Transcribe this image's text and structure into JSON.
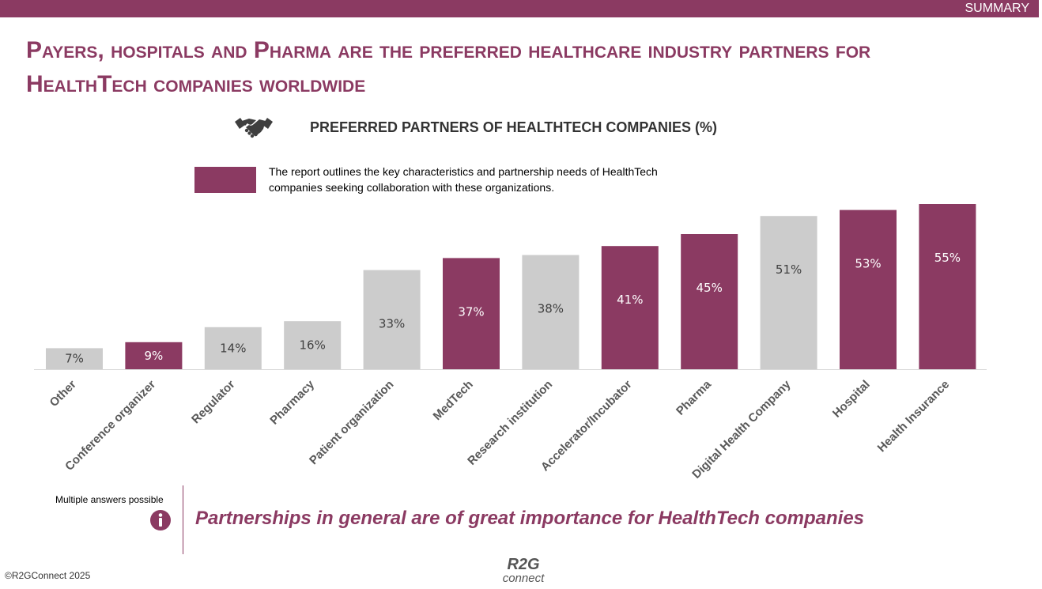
{
  "header": {
    "section_label": "SUMMARY"
  },
  "title": "Payers, hospitals and Pharma are the preferred healthcare industry partners for HealthTech companies worldwide",
  "colors": {
    "accent": "#8b3a62",
    "neutral": "#cccccc",
    "axis": "#d9d9d9"
  },
  "chart_data": {
    "type": "bar",
    "title": "PREFERRED PARTNERS OF HEALTHTECH COMPANIES (%)",
    "title_icon": "handshake-icon",
    "categories": [
      "Other",
      "Conference organizer",
      "Regulator",
      "Pharmacy",
      "Patient organization",
      "MedTech",
      "Research institution",
      "Accelerator/Incubator",
      "Pharma",
      "Digital Health Company",
      "Hospital",
      "Health Insurance"
    ],
    "values": [
      7,
      9,
      14,
      16,
      33,
      37,
      38,
      41,
      45,
      51,
      53,
      55
    ],
    "value_suffix": "%",
    "highlighted": [
      false,
      true,
      false,
      false,
      false,
      true,
      false,
      true,
      true,
      false,
      true,
      true
    ],
    "ylim": [
      0,
      55
    ],
    "xlabel": "",
    "ylabel": "",
    "grid": false,
    "legend": {
      "position": "top-left",
      "text": "The report outlines the key characteristics and partnership needs of HealthTech companies seeking collaboration with these organizations."
    }
  },
  "footer": {
    "note": "Multiple answers possible",
    "info_icon": "info-icon",
    "takeaway": "Partnerships in general are of great importance for HealthTech companies",
    "copyright": "©R2GConnect 2025",
    "logo_top": "R2G",
    "logo_bottom": "connect"
  }
}
